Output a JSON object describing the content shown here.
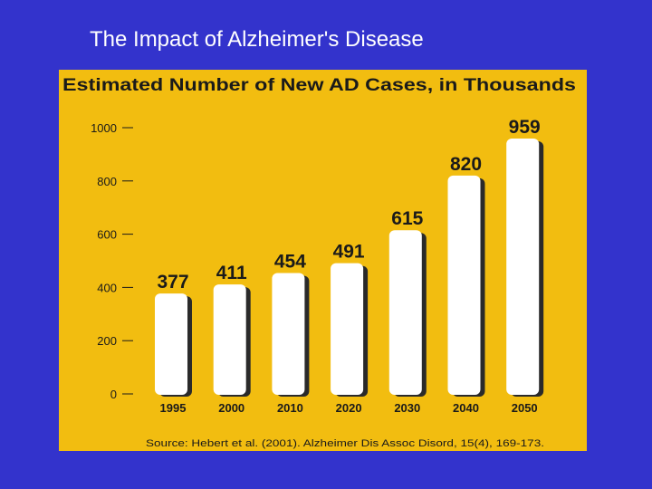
{
  "slide": {
    "title": "The Impact of Alzheimer's Disease"
  },
  "colors": {
    "background": "#3333cc",
    "panel": "#f2bd10",
    "bar": "#ffffff",
    "bar_shadow": "#2a2a2a",
    "text": "#1a1a1a"
  },
  "chart_data": {
    "type": "bar",
    "title": "Estimated Number of New AD Cases, in Thousands",
    "xlabel": "",
    "ylabel": "",
    "categories": [
      "1995",
      "2000",
      "2010",
      "2020",
      "2030",
      "2040",
      "2050"
    ],
    "values": [
      377,
      411,
      454,
      491,
      615,
      820,
      959
    ],
    "ylim": [
      0,
      1000
    ],
    "yticks": [
      0,
      200,
      400,
      600,
      800,
      1000
    ],
    "grid": false,
    "legend": "none",
    "data_labels": true,
    "source": "Source: Hebert et al. (2001). Alzheimer Dis Assoc Disord, 15(4), 169-173."
  }
}
